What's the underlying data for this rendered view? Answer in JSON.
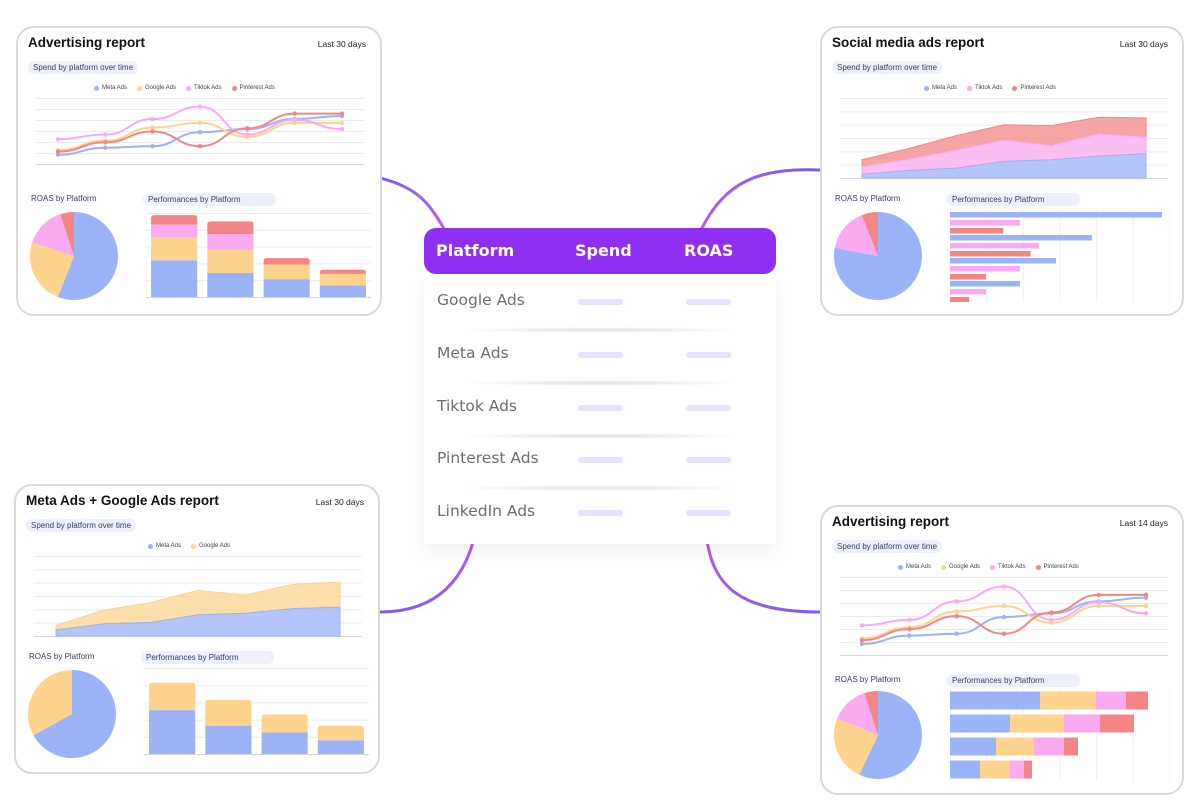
{
  "colors": {
    "meta": "#9bb3f7",
    "google": "#fdd38e",
    "tiktok": "#f9aaf0",
    "pinterest": "#f48585",
    "accent": "#8e2ff2"
  },
  "table": {
    "headers": [
      "Platform",
      "Spend",
      "ROAS"
    ],
    "rows": [
      "Google Ads",
      "Meta Ads",
      "Tiktok Ads",
      "Pinterest Ads",
      "LinkedIn Ads"
    ]
  },
  "cards": {
    "top_left": {
      "title": "Advertising report",
      "range": "Last 30 days",
      "spend_label": "Spend by platform over time",
      "legend": [
        "Meta Ads",
        "Google Ads",
        "Tiktok Ads",
        "Pinterest Ads"
      ],
      "roas_label": "ROAS by Platform",
      "perf_label": "Performances by Platform"
    },
    "top_right": {
      "title": "Social media ads report",
      "range": "Last 30 days",
      "spend_label": "Spend by platform over time",
      "legend": [
        "Meta Ads",
        "Tiktok Ads",
        "Pinterest Ads"
      ],
      "roas_label": "ROAS by Platform",
      "perf_label": "Performances by Platform"
    },
    "bottom_left": {
      "title": "Meta Ads + Google Ads report",
      "range": "Last 30 days",
      "spend_label": "Spend by platform over time",
      "legend": [
        "Meta Ads",
        "Google Ads"
      ],
      "roas_label": "ROAS by Platform",
      "perf_label": "Performances by Platform"
    },
    "bottom_right": {
      "title": "Advertising report",
      "range": "Last 14 days",
      "spend_label": "Spend by platform over time",
      "legend": [
        "Meta Ads",
        "Google Ads",
        "Tiktok Ads",
        "Pinterest Ads"
      ],
      "roas_label": "ROAS by Platform",
      "perf_label": "Performances by Platform"
    }
  },
  "chart_data": [
    {
      "type": "line",
      "x": [
        1,
        2,
        3,
        4,
        5,
        6,
        7
      ],
      "series": [
        {
          "name": "Meta Ads",
          "values": [
            12,
            21,
            23,
            41,
            45,
            58,
            62
          ]
        },
        {
          "name": "Google Ads",
          "values": [
            18,
            30,
            47,
            53,
            35,
            53,
            53
          ]
        },
        {
          "name": "Tiktok Ads",
          "values": [
            32,
            38,
            58,
            74,
            38,
            57,
            45
          ]
        },
        {
          "name": "Pinterest Ads",
          "values": [
            16,
            28,
            42,
            23,
            46,
            65,
            65
          ]
        }
      ]
    },
    {
      "type": "pie",
      "categories": [
        "Meta Ads",
        "Google Ads",
        "Tiktok Ads",
        "Pinterest Ads"
      ],
      "values": [
        56,
        24,
        15,
        5
      ]
    },
    {
      "type": "bar",
      "stacked": true,
      "categories": [
        "1",
        "2",
        "3",
        "4"
      ],
      "series": [
        {
          "name": "Meta Ads",
          "values": [
            35,
            23,
            17,
            11
          ]
        },
        {
          "name": "Google Ads",
          "values": [
            22,
            22,
            14,
            11
          ]
        },
        {
          "name": "Tiktok Ads",
          "values": [
            12,
            15,
            0,
            0
          ]
        },
        {
          "name": "Pinterest Ads",
          "values": [
            9,
            12,
            6,
            4
          ]
        }
      ],
      "ylim": [
        0,
        80
      ]
    },
    {
      "type": "area",
      "stacked": true,
      "x": [
        1,
        2,
        3,
        4,
        5,
        6,
        7
      ],
      "series": [
        {
          "name": "Meta Ads",
          "values": [
            5,
            10,
            13,
            22,
            24,
            29,
            32
          ]
        },
        {
          "name": "Tiktok Ads",
          "values": [
            10,
            15,
            24,
            28,
            19,
            29,
            22
          ]
        },
        {
          "name": "Pinterest Ads",
          "values": [
            9,
            14,
            19,
            20,
            26,
            22,
            25
          ]
        }
      ],
      "ylim": [
        0,
        100
      ]
    },
    {
      "type": "pie",
      "categories": [
        "Meta Ads",
        "Tiktok Ads",
        "Pinterest Ads"
      ],
      "values": [
        78,
        16,
        6
      ]
    },
    {
      "type": "bar",
      "orientation": "horizontal",
      "categories": [
        "1",
        "2",
        "3",
        "4"
      ],
      "series": [
        {
          "name": "Meta Ads",
          "values": [
            100,
            67,
            50,
            33
          ]
        },
        {
          "name": "Tiktok Ads",
          "values": [
            33,
            42,
            33,
            17
          ]
        },
        {
          "name": "Pinterest Ads",
          "values": [
            25,
            38,
            17,
            9
          ]
        }
      ],
      "xlim": [
        0,
        100
      ]
    },
    {
      "type": "area",
      "stacked": true,
      "x": [
        1,
        2,
        3,
        4,
        5,
        6,
        7
      ],
      "series": [
        {
          "name": "Meta Ads",
          "values": [
            8,
            16,
            18,
            28,
            30,
            36,
            38
          ]
        },
        {
          "name": "Google Ads",
          "values": [
            6,
            18,
            26,
            32,
            24,
            32,
            33
          ]
        }
      ],
      "ylim": [
        0,
        100
      ]
    },
    {
      "type": "pie",
      "categories": [
        "Meta Ads",
        "Google Ads"
      ],
      "values": [
        67,
        33
      ]
    },
    {
      "type": "bar",
      "stacked": true,
      "categories": [
        "1",
        "2",
        "3",
        "4"
      ],
      "series": [
        {
          "name": "Meta Ads",
          "values": [
            51,
            33,
            25,
            16
          ]
        },
        {
          "name": "Google Ads",
          "values": [
            32,
            30,
            21,
            17
          ]
        }
      ],
      "ylim": [
        0,
        100
      ]
    },
    {
      "type": "line",
      "x": [
        1,
        2,
        3,
        4,
        5,
        6,
        7
      ],
      "series": [
        {
          "name": "Meta Ads",
          "values": [
            12,
            21,
            23,
            41,
            45,
            58,
            62
          ]
        },
        {
          "name": "Google Ads",
          "values": [
            18,
            30,
            47,
            53,
            35,
            53,
            53
          ]
        },
        {
          "name": "Tiktok Ads",
          "values": [
            32,
            38,
            58,
            74,
            38,
            57,
            45
          ]
        },
        {
          "name": "Pinterest Ads",
          "values": [
            16,
            28,
            42,
            23,
            46,
            65,
            65
          ]
        }
      ]
    },
    {
      "type": "pie",
      "categories": [
        "Meta Ads",
        "Google Ads",
        "Tiktok Ads",
        "Pinterest Ads"
      ],
      "values": [
        57,
        24,
        14,
        5
      ]
    },
    {
      "type": "bar",
      "orientation": "horizontal",
      "stacked": true,
      "categories": [
        "1",
        "2",
        "3",
        "4"
      ],
      "series": [
        {
          "name": "Meta Ads",
          "values": [
            45,
            30,
            23,
            15
          ]
        },
        {
          "name": "Google Ads",
          "values": [
            28,
            27,
            19,
            15
          ]
        },
        {
          "name": "Tiktok Ads",
          "values": [
            15,
            18,
            15,
            7
          ]
        },
        {
          "name": "Pinterest Ads",
          "values": [
            11,
            17,
            7,
            4
          ]
        }
      ],
      "xlim": [
        0,
        100
      ]
    }
  ]
}
